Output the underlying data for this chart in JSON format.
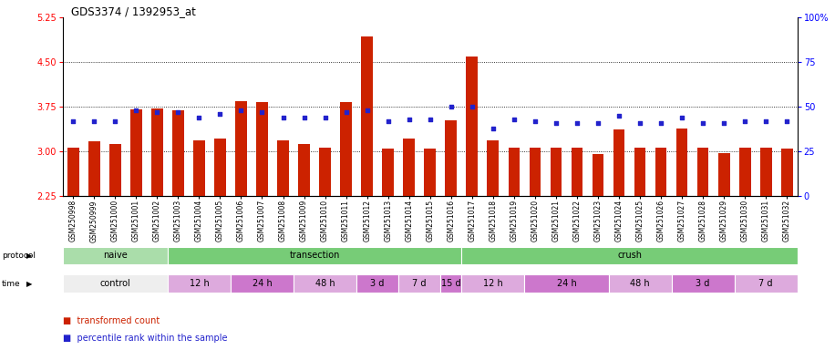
{
  "title": "GDS3374 / 1392953_at",
  "samples": [
    "GSM250998",
    "GSM250999",
    "GSM251000",
    "GSM251001",
    "GSM251002",
    "GSM251003",
    "GSM251004",
    "GSM251005",
    "GSM251006",
    "GSM251007",
    "GSM251008",
    "GSM251009",
    "GSM251010",
    "GSM251011",
    "GSM251012",
    "GSM251013",
    "GSM251014",
    "GSM251015",
    "GSM251016",
    "GSM251017",
    "GSM251018",
    "GSM251019",
    "GSM251020",
    "GSM251021",
    "GSM251022",
    "GSM251023",
    "GSM251024",
    "GSM251025",
    "GSM251026",
    "GSM251027",
    "GSM251028",
    "GSM251029",
    "GSM251030",
    "GSM251031",
    "GSM251032"
  ],
  "bar_values": [
    3.07,
    3.17,
    3.13,
    3.7,
    3.72,
    3.69,
    3.18,
    3.22,
    3.85,
    3.83,
    3.19,
    3.13,
    3.07,
    3.83,
    4.93,
    3.04,
    3.22,
    3.05,
    3.52,
    4.6,
    3.18,
    3.07,
    3.07,
    3.07,
    3.06,
    2.96,
    3.37,
    3.07,
    3.06,
    3.39,
    3.07,
    2.97,
    3.07,
    3.06,
    3.05
  ],
  "percentile_values": [
    42,
    42,
    42,
    48,
    47,
    47,
    44,
    46,
    48,
    47,
    44,
    44,
    44,
    47,
    48,
    42,
    43,
    43,
    50,
    50,
    38,
    43,
    42,
    41,
    41,
    41,
    45,
    41,
    41,
    44,
    41,
    41,
    42,
    42,
    42
  ],
  "ylim_left": [
    2.25,
    5.25
  ],
  "ylim_right": [
    0,
    100
  ],
  "yticks_left": [
    2.25,
    3.0,
    3.75,
    4.5,
    5.25
  ],
  "yticks_right": [
    0,
    25,
    50,
    75,
    100
  ],
  "ytick_labels_right": [
    "0",
    "25",
    "50",
    "75",
    "100%"
  ],
  "grid_lines": [
    3.0,
    3.75,
    4.5
  ],
  "bar_color": "#cc2200",
  "dot_color": "#2222cc",
  "bar_bottom": 2.25,
  "protocol_bands": [
    {
      "label": "naive",
      "start": 0,
      "end": 5,
      "color": "#aaddaa"
    },
    {
      "label": "transection",
      "start": 5,
      "end": 19,
      "color": "#77cc77"
    },
    {
      "label": "crush",
      "start": 19,
      "end": 35,
      "color": "#77cc77"
    }
  ],
  "time_bands": [
    {
      "label": "control",
      "start": 0,
      "end": 5,
      "color": "#eeeeee"
    },
    {
      "label": "12 h",
      "start": 5,
      "end": 8,
      "color": "#ddaadd"
    },
    {
      "label": "24 h",
      "start": 8,
      "end": 11,
      "color": "#cc77cc"
    },
    {
      "label": "48 h",
      "start": 11,
      "end": 14,
      "color": "#ddaadd"
    },
    {
      "label": "3 d",
      "start": 14,
      "end": 16,
      "color": "#cc77cc"
    },
    {
      "label": "7 d",
      "start": 16,
      "end": 18,
      "color": "#ddaadd"
    },
    {
      "label": "15 d",
      "start": 18,
      "end": 19,
      "color": "#cc77cc"
    },
    {
      "label": "12 h",
      "start": 19,
      "end": 22,
      "color": "#ddaadd"
    },
    {
      "label": "24 h",
      "start": 22,
      "end": 26,
      "color": "#cc77cc"
    },
    {
      "label": "48 h",
      "start": 26,
      "end": 29,
      "color": "#ddaadd"
    },
    {
      "label": "3 d",
      "start": 29,
      "end": 32,
      "color": "#cc77cc"
    },
    {
      "label": "7 d",
      "start": 32,
      "end": 35,
      "color": "#ddaadd"
    }
  ],
  "background_color": "#ffffff",
  "plot_bg_color": "#ffffff"
}
